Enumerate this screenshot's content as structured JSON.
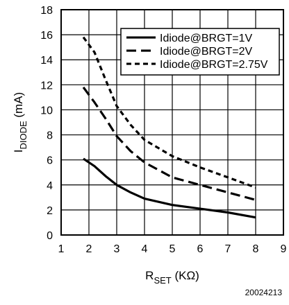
{
  "chart_data": {
    "type": "line",
    "xlabel_main": "R",
    "xlabel_sub": "SET",
    "xlabel_unit": "(KΩ)",
    "ylabel_main": "I",
    "ylabel_sub": "DIODE",
    "ylabel_unit": "(mA)",
    "xlim": [
      1,
      9
    ],
    "ylim": [
      0,
      18
    ],
    "x_ticks": [
      1,
      2,
      3,
      4,
      5,
      6,
      7,
      8,
      9
    ],
    "y_ticks": [
      0,
      2,
      4,
      6,
      8,
      10,
      12,
      14,
      16,
      18
    ],
    "grid": true,
    "legend_position": "top-right",
    "series": [
      {
        "name": "Idiode@BRGT=1V",
        "style": "solid",
        "x": [
          1.8,
          2.2,
          2.6,
          3.0,
          3.5,
          4.0,
          5.0,
          6.0,
          7.0,
          8.0
        ],
        "y": [
          6.1,
          5.5,
          4.7,
          4.0,
          3.4,
          2.9,
          2.4,
          2.1,
          1.8,
          1.4
        ]
      },
      {
        "name": "Idiode@BRGT=2V",
        "style": "dash",
        "x": [
          1.8,
          2.2,
          2.6,
          3.0,
          3.5,
          4.0,
          5.0,
          6.0,
          7.0,
          8.0
        ],
        "y": [
          11.8,
          10.6,
          9.3,
          7.9,
          6.7,
          5.8,
          4.6,
          4.0,
          3.4,
          2.8
        ]
      },
      {
        "name": "Idiode@BRGT=2.75V",
        "style": "shortdash",
        "x": [
          1.8,
          2.2,
          2.6,
          3.0,
          3.5,
          4.0,
          5.0,
          6.0,
          7.0,
          8.0
        ],
        "y": [
          15.8,
          14.6,
          12.4,
          10.3,
          8.8,
          7.6,
          6.3,
          5.4,
          4.6,
          3.8
        ]
      }
    ]
  },
  "figure_id": "20024213"
}
